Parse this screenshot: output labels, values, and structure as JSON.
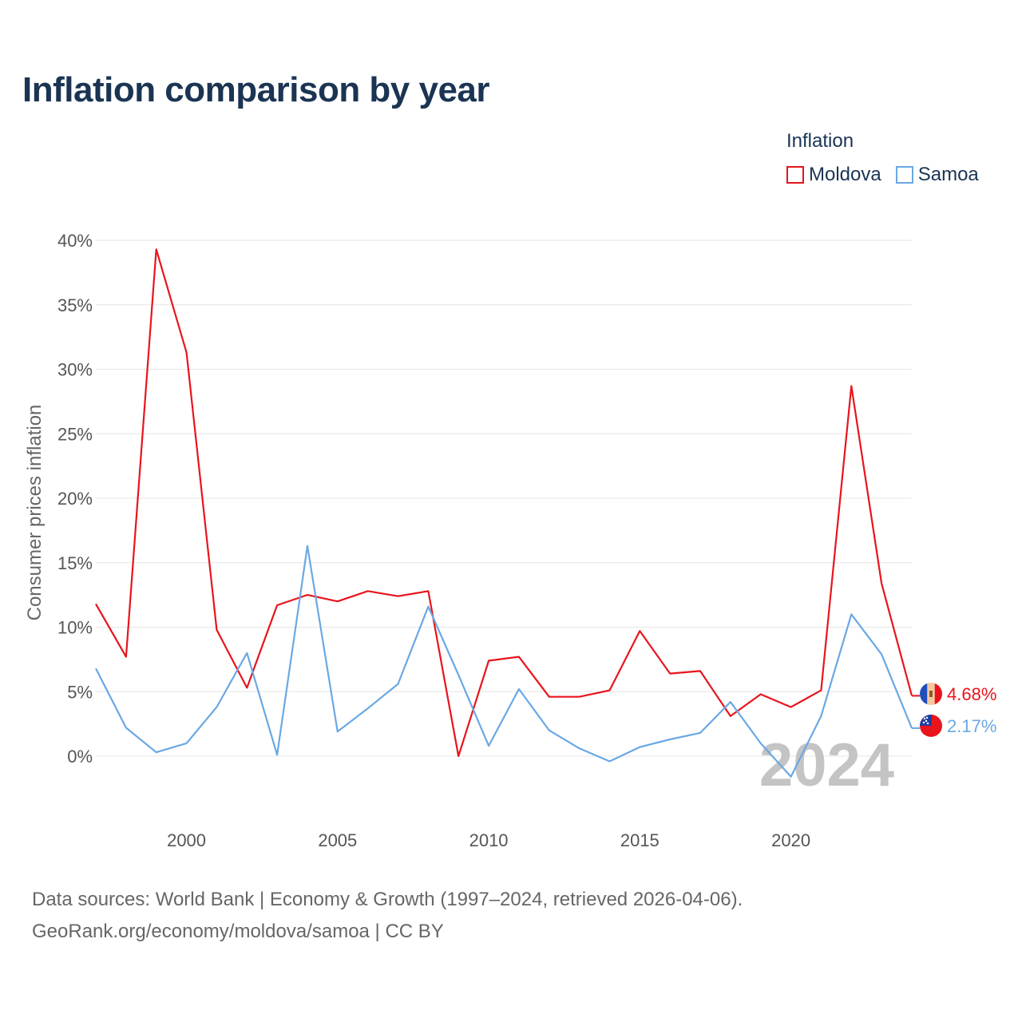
{
  "title": "Inflation comparison by year",
  "legend": {
    "title": "Inflation",
    "items": [
      {
        "label": "Moldova",
        "color": "#e8141c"
      },
      {
        "label": "Samoa",
        "color": "#6aa8e3"
      }
    ]
  },
  "chart_data": {
    "type": "line",
    "title": "Inflation comparison by year",
    "xlabel": "",
    "ylabel": "Consumer prices inflation",
    "x": [
      1997,
      1998,
      1999,
      2000,
      2001,
      2002,
      2003,
      2004,
      2005,
      2006,
      2007,
      2008,
      2009,
      2010,
      2011,
      2012,
      2013,
      2014,
      2015,
      2016,
      2017,
      2018,
      2019,
      2020,
      2021,
      2022,
      2023,
      2024
    ],
    "series": [
      {
        "name": "Moldova",
        "color": "#e8141c",
        "values": [
          11.8,
          7.7,
          39.3,
          31.3,
          9.8,
          5.3,
          11.7,
          12.5,
          12.0,
          12.8,
          12.4,
          12.8,
          0.0,
          7.4,
          7.7,
          4.6,
          4.6,
          5.1,
          9.7,
          6.4,
          6.6,
          3.1,
          4.8,
          3.8,
          5.1,
          28.7,
          13.4,
          4.68
        ],
        "end_label": "4.68%"
      },
      {
        "name": "Samoa",
        "color": "#6aa8e3",
        "values": [
          6.8,
          2.2,
          0.3,
          1.0,
          3.8,
          8.0,
          0.1,
          16.3,
          1.9,
          3.7,
          5.6,
          11.6,
          6.3,
          0.8,
          5.2,
          2.0,
          0.6,
          -0.4,
          0.7,
          1.3,
          1.8,
          4.2,
          1.0,
          -1.6,
          3.1,
          11.0,
          7.9,
          2.17
        ],
        "end_label": "2.17%"
      }
    ],
    "y_ticks": [
      0,
      5,
      10,
      15,
      20,
      25,
      30,
      35,
      40
    ],
    "y_tick_labels": [
      "0%",
      "5%",
      "10%",
      "15%",
      "20%",
      "25%",
      "30%",
      "35%",
      "40%"
    ],
    "x_ticks": [
      2000,
      2005,
      2010,
      2015,
      2020
    ],
    "x_tick_labels": [
      "2000",
      "2005",
      "2010",
      "2015",
      "2020"
    ],
    "xlim": [
      1997,
      2024
    ],
    "ylim": [
      -4,
      42
    ],
    "year_watermark": "2024",
    "grid": true,
    "legend_position": "top-right"
  },
  "footer": {
    "line1": "Data sources: World Bank | Economy & Growth (1997–2024, retrieved 2026-04-06).",
    "line2": "GeoRank.org/economy/moldova/samoa | CC BY"
  }
}
